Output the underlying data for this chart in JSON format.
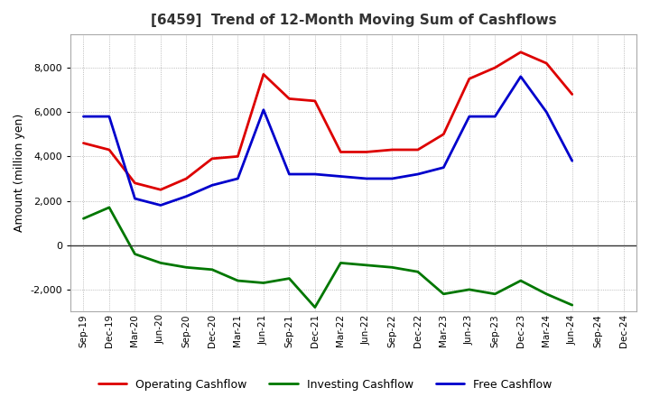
{
  "title": "[6459]  Trend of 12-Month Moving Sum of Cashflows",
  "ylabel": "Amount (million yen)",
  "x_labels": [
    "Sep-19",
    "Dec-19",
    "Mar-20",
    "Jun-20",
    "Sep-20",
    "Dec-20",
    "Mar-21",
    "Jun-21",
    "Sep-21",
    "Dec-21",
    "Mar-22",
    "Jun-22",
    "Sep-22",
    "Dec-22",
    "Mar-23",
    "Jun-23",
    "Sep-23",
    "Dec-23",
    "Mar-24",
    "Jun-24",
    "Sep-24",
    "Dec-24"
  ],
  "operating": [
    4600,
    4300,
    2800,
    2500,
    3000,
    3900,
    4000,
    7700,
    6600,
    6500,
    4200,
    4200,
    4300,
    4300,
    5000,
    7500,
    8000,
    8700,
    8200,
    6800,
    null,
    null
  ],
  "investing": [
    1200,
    1700,
    -400,
    -800,
    -1000,
    -1100,
    -1600,
    -1700,
    -1500,
    -2800,
    -800,
    -900,
    -1000,
    -1200,
    -2200,
    -2000,
    -2200,
    -1600,
    -2200,
    -2700,
    null,
    null
  ],
  "free": [
    5800,
    5800,
    2100,
    1800,
    2200,
    2700,
    3000,
    6100,
    3200,
    3200,
    3100,
    3000,
    3000,
    3200,
    3500,
    5800,
    5800,
    7600,
    6000,
    3800,
    null,
    null
  ],
  "operating_color": "#dd0000",
  "investing_color": "#007700",
  "free_color": "#0000cc",
  "background_color": "#ffffff",
  "plot_bg_color": "#ffffff",
  "grid_color": "#888888",
  "ylim": [
    -3000,
    9500
  ],
  "yticks": [
    -2000,
    0,
    2000,
    4000,
    6000,
    8000
  ],
  "figsize": [
    7.2,
    4.4
  ],
  "dpi": 100
}
